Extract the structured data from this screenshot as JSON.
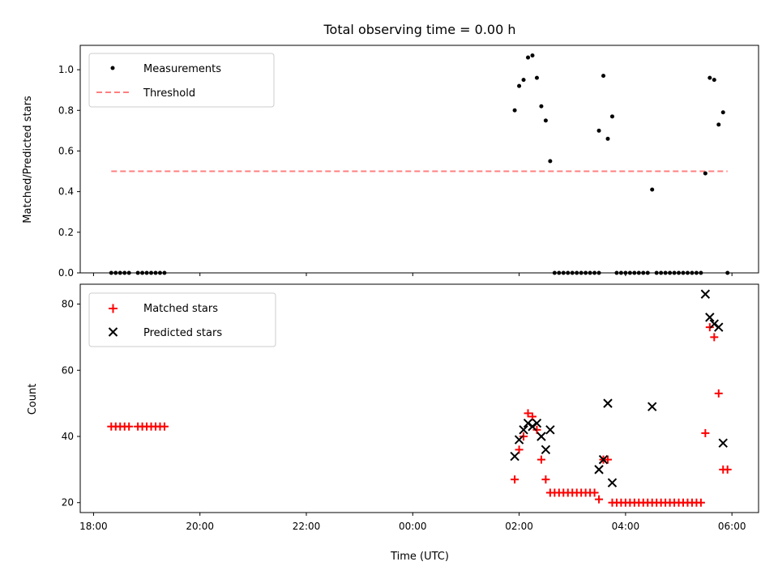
{
  "chart_data": [
    {
      "type": "scatter",
      "title": "Total observing time = 0.00 h",
      "xlabel": "",
      "ylabel": "Matched/Predicted stars",
      "ylim": [
        0,
        1.12
      ],
      "yticks": [
        "0.0",
        "0.2",
        "0.4",
        "0.6",
        "0.8",
        "1.0"
      ],
      "legend_position": "top-left",
      "threshold": {
        "name": "Threshold",
        "value": 0.5,
        "x_range": [
          "18:20",
          "05:55"
        ],
        "color": "#ff7f7f",
        "style": "dashed"
      },
      "series": [
        {
          "name": "Measurements",
          "color": "#000000",
          "points": [
            [
              "18:20",
              0
            ],
            [
              "18:25",
              0
            ],
            [
              "18:30",
              0
            ],
            [
              "18:35",
              0
            ],
            [
              "18:40",
              0
            ],
            [
              "18:50",
              0
            ],
            [
              "18:55",
              0
            ],
            [
              "19:00",
              0
            ],
            [
              "19:05",
              0
            ],
            [
              "19:10",
              0
            ],
            [
              "19:15",
              0
            ],
            [
              "19:20",
              0
            ],
            [
              "01:55",
              0.8
            ],
            [
              "02:00",
              0.92
            ],
            [
              "02:05",
              0.95
            ],
            [
              "02:10",
              1.06
            ],
            [
              "02:15",
              1.07
            ],
            [
              "02:20",
              0.96
            ],
            [
              "02:25",
              0.82
            ],
            [
              "02:30",
              0.75
            ],
            [
              "02:35",
              0.55
            ],
            [
              "02:40",
              0
            ],
            [
              "02:45",
              0
            ],
            [
              "02:50",
              0
            ],
            [
              "02:55",
              0
            ],
            [
              "03:00",
              0
            ],
            [
              "03:05",
              0
            ],
            [
              "03:10",
              0
            ],
            [
              "03:15",
              0
            ],
            [
              "03:20",
              0
            ],
            [
              "03:25",
              0
            ],
            [
              "03:30",
              0
            ],
            [
              "03:30",
              0.7
            ],
            [
              "03:35",
              0.97
            ],
            [
              "03:40",
              0.66
            ],
            [
              "03:45",
              0.77
            ],
            [
              "03:50",
              0
            ],
            [
              "03:55",
              0
            ],
            [
              "04:00",
              0
            ],
            [
              "04:05",
              0
            ],
            [
              "04:10",
              0
            ],
            [
              "04:15",
              0
            ],
            [
              "04:20",
              0
            ],
            [
              "04:25",
              0
            ],
            [
              "04:30",
              0.41
            ],
            [
              "04:35",
              0
            ],
            [
              "04:40",
              0
            ],
            [
              "04:45",
              0
            ],
            [
              "04:50",
              0
            ],
            [
              "04:55",
              0
            ],
            [
              "05:00",
              0
            ],
            [
              "05:05",
              0
            ],
            [
              "05:10",
              0
            ],
            [
              "05:15",
              0
            ],
            [
              "05:20",
              0
            ],
            [
              "05:25",
              0
            ],
            [
              "05:30",
              0.49
            ],
            [
              "05:35",
              0.96
            ],
            [
              "05:40",
              0.95
            ],
            [
              "05:45",
              0.73
            ],
            [
              "05:50",
              0.79
            ],
            [
              "05:55",
              0
            ]
          ]
        }
      ]
    },
    {
      "type": "scatter",
      "title": "",
      "xlabel": "Time (UTC)",
      "ylabel": "Count",
      "ylim": [
        17,
        86
      ],
      "yticks": [
        "20",
        "40",
        "60",
        "80"
      ],
      "xlim": [
        "17:45",
        "06:30"
      ],
      "xticks": [
        "18:00",
        "20:00",
        "22:00",
        "00:00",
        "02:00",
        "04:00",
        "06:00"
      ],
      "legend_position": "top-left",
      "series": [
        {
          "name": "Matched stars",
          "color": "#ff0000",
          "marker": "plus",
          "points": [
            [
              "18:20",
              43
            ],
            [
              "18:25",
              43
            ],
            [
              "18:30",
              43
            ],
            [
              "18:35",
              43
            ],
            [
              "18:40",
              43
            ],
            [
              "18:50",
              43
            ],
            [
              "18:55",
              43
            ],
            [
              "19:00",
              43
            ],
            [
              "19:05",
              43
            ],
            [
              "19:10",
              43
            ],
            [
              "19:15",
              43
            ],
            [
              "19:20",
              43
            ],
            [
              "01:55",
              27
            ],
            [
              "02:00",
              36
            ],
            [
              "02:05",
              40
            ],
            [
              "02:10",
              47
            ],
            [
              "02:15",
              46
            ],
            [
              "02:20",
              42
            ],
            [
              "02:25",
              33
            ],
            [
              "02:30",
              27
            ],
            [
              "02:35",
              23
            ],
            [
              "02:40",
              23
            ],
            [
              "02:45",
              23
            ],
            [
              "02:50",
              23
            ],
            [
              "02:55",
              23
            ],
            [
              "03:00",
              23
            ],
            [
              "03:05",
              23
            ],
            [
              "03:10",
              23
            ],
            [
              "03:15",
              23
            ],
            [
              "03:20",
              23
            ],
            [
              "03:25",
              23
            ],
            [
              "03:30",
              21
            ],
            [
              "03:35",
              33
            ],
            [
              "03:40",
              33
            ],
            [
              "03:45",
              20
            ],
            [
              "03:50",
              20
            ],
            [
              "03:55",
              20
            ],
            [
              "04:00",
              20
            ],
            [
              "04:05",
              20
            ],
            [
              "04:10",
              20
            ],
            [
              "04:15",
              20
            ],
            [
              "04:20",
              20
            ],
            [
              "04:25",
              20
            ],
            [
              "04:30",
              20
            ],
            [
              "04:35",
              20
            ],
            [
              "04:40",
              20
            ],
            [
              "04:45",
              20
            ],
            [
              "04:50",
              20
            ],
            [
              "04:55",
              20
            ],
            [
              "05:00",
              20
            ],
            [
              "05:05",
              20
            ],
            [
              "05:10",
              20
            ],
            [
              "05:15",
              20
            ],
            [
              "05:20",
              20
            ],
            [
              "05:25",
              20
            ],
            [
              "05:30",
              41
            ],
            [
              "05:35",
              73
            ],
            [
              "05:40",
              70
            ],
            [
              "05:45",
              53
            ],
            [
              "05:50",
              30
            ],
            [
              "05:55",
              30
            ]
          ]
        },
        {
          "name": "Predicted stars",
          "color": "#000000",
          "marker": "x",
          "points": [
            [
              "01:55",
              34
            ],
            [
              "02:00",
              39
            ],
            [
              "02:05",
              42
            ],
            [
              "02:10",
              44
            ],
            [
              "02:15",
              43
            ],
            [
              "02:20",
              44
            ],
            [
              "02:25",
              40
            ],
            [
              "02:30",
              36
            ],
            [
              "02:35",
              42
            ],
            [
              "03:30",
              30
            ],
            [
              "03:35",
              33
            ],
            [
              "03:40",
              50
            ],
            [
              "03:45",
              26
            ],
            [
              "04:30",
              49
            ],
            [
              "05:30",
              83
            ],
            [
              "05:35",
              76
            ],
            [
              "05:40",
              74
            ],
            [
              "05:45",
              73
            ],
            [
              "05:50",
              38
            ]
          ]
        }
      ]
    }
  ]
}
